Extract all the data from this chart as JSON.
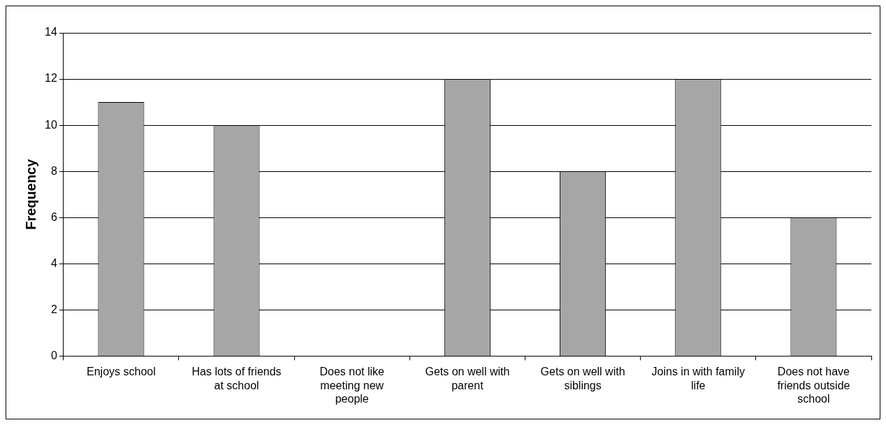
{
  "chart_data": {
    "type": "bar",
    "ylabel": "Frequency",
    "categories": [
      "Enjoys school",
      "Has lots of friends at school",
      "Does not like meeting new people",
      "Gets on well with parent",
      "Gets on well with siblings",
      "Joins in with family life",
      "Does not have friends outside school"
    ],
    "values": [
      11,
      10,
      0,
      12,
      8,
      12,
      6
    ],
    "color": "#a6a6a6",
    "ylim": [
      0,
      14
    ],
    "yticks": [
      0,
      2,
      4,
      6,
      8,
      10,
      12,
      14
    ],
    "grid": "y"
  }
}
